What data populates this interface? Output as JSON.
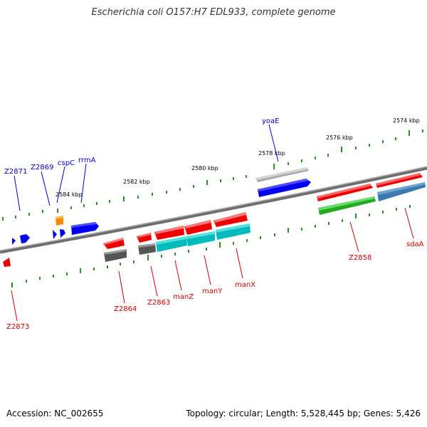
{
  "title": "Escherichia coli O157:H7 EDL933, complete genome",
  "footer": {
    "accession": "Accession: NC_002655",
    "summary": "Topology: circular; Length: 5,528,445 bp; Genes: 5,426"
  },
  "colors": {
    "genome_line": "#808080",
    "tick": "#2e8b2e",
    "forward_label": "#0000cc",
    "reverse_label": "#cc0000",
    "background": "#ffffff"
  },
  "scale_labels": [
    "2574 kbp",
    "2576 kbp",
    "2578 kbp",
    "2580 kbp",
    "2582 kbp",
    "2584 kbp"
  ],
  "forward_labels": [
    "yoaE",
    "rrmA",
    "cspC",
    "Z2869",
    "Z2871"
  ],
  "reverse_labels": [
    "Z2873",
    "Z2864",
    "Z2863",
    "manZ",
    "manY",
    "manX",
    "Z2858",
    "sdaA"
  ],
  "gene_tracks": [
    {
      "color": "#0000ff",
      "name": "blue-gene"
    },
    {
      "color": "#ff0000",
      "name": "red-gene"
    },
    {
      "color": "#ff8800",
      "name": "orange-gene"
    },
    {
      "color": "#00cccc",
      "name": "cyan-gene"
    },
    {
      "color": "#33cc33",
      "name": "green-gene"
    },
    {
      "color": "#4682b4",
      "name": "steelblue-gene"
    },
    {
      "color": "#555555",
      "name": "gray-gene"
    },
    {
      "color": "#aaaaaa",
      "name": "lightgray-gene"
    }
  ]
}
